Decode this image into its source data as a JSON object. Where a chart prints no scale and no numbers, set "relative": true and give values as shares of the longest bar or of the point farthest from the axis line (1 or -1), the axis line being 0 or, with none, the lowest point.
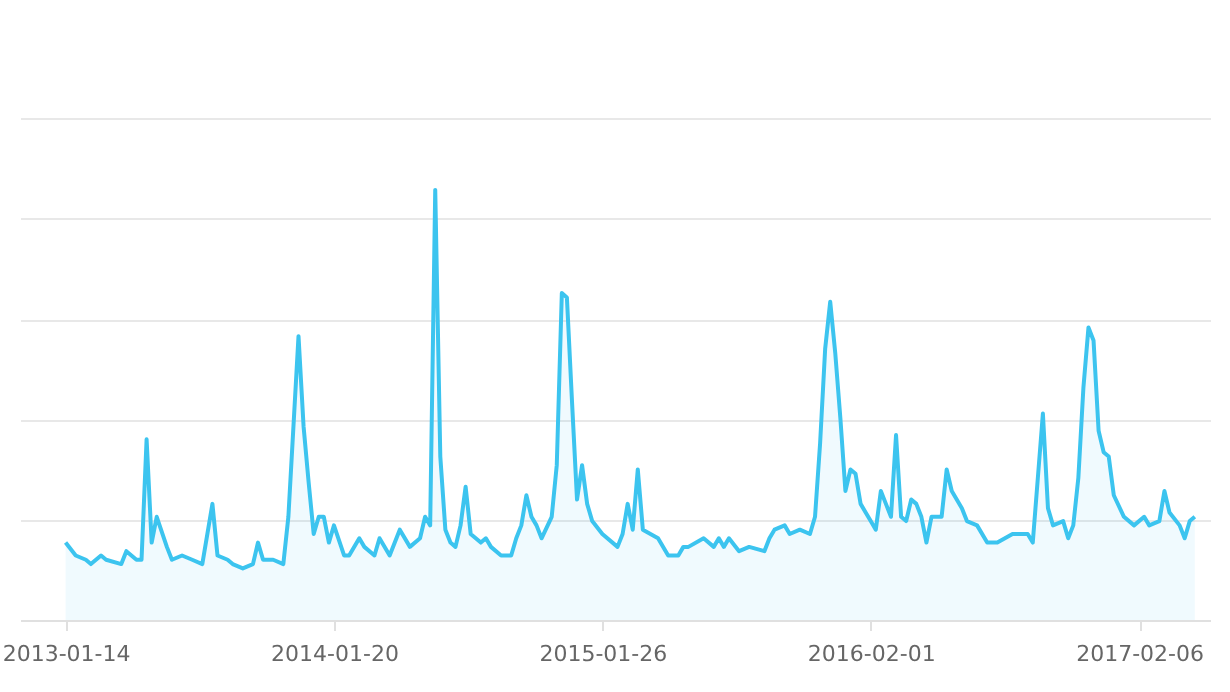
{
  "chart_data": {
    "type": "area",
    "relative": true,
    "grid": "y",
    "color": "#3cc4ef",
    "x": [
      "2013-01-14",
      "2013-01-28",
      "2013-02-11",
      "2013-02-18",
      "2013-03-04",
      "2013-03-11",
      "2013-04-01",
      "2013-04-08",
      "2013-04-22",
      "2013-04-29",
      "2013-05-06",
      "2013-05-13",
      "2013-05-20",
      "2013-06-03",
      "2013-06-10",
      "2013-06-24",
      "2013-07-08",
      "2013-07-22",
      "2013-08-05",
      "2013-08-12",
      "2013-08-26",
      "2013-09-02",
      "2013-09-16",
      "2013-09-30",
      "2013-10-07",
      "2013-10-14",
      "2013-10-28",
      "2013-11-11",
      "2013-11-18",
      "2013-12-02",
      "2013-12-09",
      "2013-12-16",
      "2013-12-23",
      "2013-12-30",
      "2014-01-06",
      "2014-01-13",
      "2014-01-20",
      "2014-02-03",
      "2014-02-10",
      "2014-02-24",
      "2014-03-03",
      "2014-03-17",
      "2014-03-24",
      "2014-04-07",
      "2014-04-21",
      "2014-05-05",
      "2014-05-19",
      "2014-05-26",
      "2014-06-02",
      "2014-06-09",
      "2014-06-16",
      "2014-06-23",
      "2014-06-30",
      "2014-07-07",
      "2014-07-14",
      "2014-07-21",
      "2014-07-28",
      "2014-08-04",
      "2014-08-11",
      "2014-08-18",
      "2014-08-25",
      "2014-09-08",
      "2014-09-22",
      "2014-09-29",
      "2014-10-06",
      "2014-10-13",
      "2014-10-20",
      "2014-10-27",
      "2014-11-03",
      "2014-11-17",
      "2014-11-24",
      "2014-12-01",
      "2014-12-08",
      "2014-12-15",
      "2014-12-22",
      "2014-12-29",
      "2015-01-05",
      "2015-01-12",
      "2015-01-26",
      "2015-02-16",
      "2015-02-23",
      "2015-03-02",
      "2015-03-09",
      "2015-03-16",
      "2015-03-23",
      "2015-04-13",
      "2015-04-27",
      "2015-05-11",
      "2015-05-18",
      "2015-05-25",
      "2015-06-15",
      "2015-06-29",
      "2015-07-06",
      "2015-07-13",
      "2015-07-20",
      "2015-08-03",
      "2015-08-17",
      "2015-09-07",
      "2015-09-14",
      "2015-09-21",
      "2015-10-05",
      "2015-10-12",
      "2015-10-26",
      "2015-11-09",
      "2015-11-16",
      "2015-11-23",
      "2015-11-30",
      "2015-12-07",
      "2015-12-14",
      "2015-12-21",
      "2015-12-28",
      "2016-01-04",
      "2016-01-11",
      "2016-01-18",
      "2016-01-25",
      "2016-02-01",
      "2016-02-08",
      "2016-02-15",
      "2016-02-22",
      "2016-02-29",
      "2016-03-07",
      "2016-03-14",
      "2016-03-21",
      "2016-03-28",
      "2016-04-04",
      "2016-04-11",
      "2016-04-18",
      "2016-04-25",
      "2016-05-09",
      "2016-05-16",
      "2016-05-23",
      "2016-06-06",
      "2016-06-13",
      "2016-06-27",
      "2016-07-11",
      "2016-07-25",
      "2016-08-15",
      "2016-08-22",
      "2016-09-05",
      "2016-09-12",
      "2016-09-19",
      "2016-09-26",
      "2016-10-03",
      "2016-10-10",
      "2016-10-24",
      "2016-10-31",
      "2016-11-07",
      "2016-11-14",
      "2016-11-21",
      "2016-11-28",
      "2016-12-05",
      "2016-12-12",
      "2016-12-19",
      "2016-12-26",
      "2017-01-02",
      "2017-01-16",
      "2017-01-30",
      "2017-02-13",
      "2017-02-20",
      "2017-03-06",
      "2017-03-13",
      "2017-03-20",
      "2017-04-03",
      "2017-04-10",
      "2017-04-17",
      "2017-04-24"
    ],
    "values": [
      0.18,
      0.15,
      0.14,
      0.13,
      0.15,
      0.14,
      0.13,
      0.16,
      0.14,
      0.14,
      0.42,
      0.18,
      0.24,
      0.17,
      0.14,
      0.15,
      0.14,
      0.13,
      0.27,
      0.15,
      0.14,
      0.13,
      0.12,
      0.13,
      0.18,
      0.14,
      0.14,
      0.13,
      0.24,
      0.66,
      0.45,
      0.32,
      0.2,
      0.24,
      0.24,
      0.18,
      0.22,
      0.15,
      0.15,
      0.19,
      0.17,
      0.15,
      0.19,
      0.15,
      0.21,
      0.17,
      0.19,
      0.24,
      0.22,
      1.0,
      0.38,
      0.21,
      0.18,
      0.17,
      0.22,
      0.31,
      0.2,
      0.19,
      0.18,
      0.19,
      0.17,
      0.15,
      0.15,
      0.19,
      0.22,
      0.29,
      0.24,
      0.22,
      0.19,
      0.24,
      0.36,
      0.76,
      0.75,
      0.51,
      0.28,
      0.36,
      0.27,
      0.23,
      0.2,
      0.17,
      0.2,
      0.27,
      0.21,
      0.35,
      0.21,
      0.19,
      0.15,
      0.15,
      0.17,
      0.17,
      0.19,
      0.17,
      0.19,
      0.17,
      0.19,
      0.16,
      0.17,
      0.16,
      0.19,
      0.21,
      0.22,
      0.2,
      0.21,
      0.2,
      0.24,
      0.41,
      0.63,
      0.74,
      0.62,
      0.47,
      0.3,
      0.35,
      0.34,
      0.27,
      0.25,
      0.23,
      0.21,
      0.3,
      0.27,
      0.24,
      0.43,
      0.24,
      0.23,
      0.28,
      0.27,
      0.24,
      0.18,
      0.24,
      0.24,
      0.35,
      0.3,
      0.26,
      0.23,
      0.22,
      0.18,
      0.18,
      0.2,
      0.2,
      0.2,
      0.18,
      0.33,
      0.48,
      0.26,
      0.22,
      0.23,
      0.19,
      0.22,
      0.33,
      0.54,
      0.68,
      0.65,
      0.44,
      0.39,
      0.38,
      0.29,
      0.24,
      0.22,
      0.24,
      0.22,
      0.23,
      0.3,
      0.25,
      0.22,
      0.19,
      0.23,
      0.24
    ],
    "xlim": [
      "2012-11-12",
      "2017-05-15"
    ],
    "xticks": [
      "2013-01-14",
      "2014-01-20",
      "2015-01-26",
      "2016-02-01",
      "2017-02-06"
    ]
  }
}
